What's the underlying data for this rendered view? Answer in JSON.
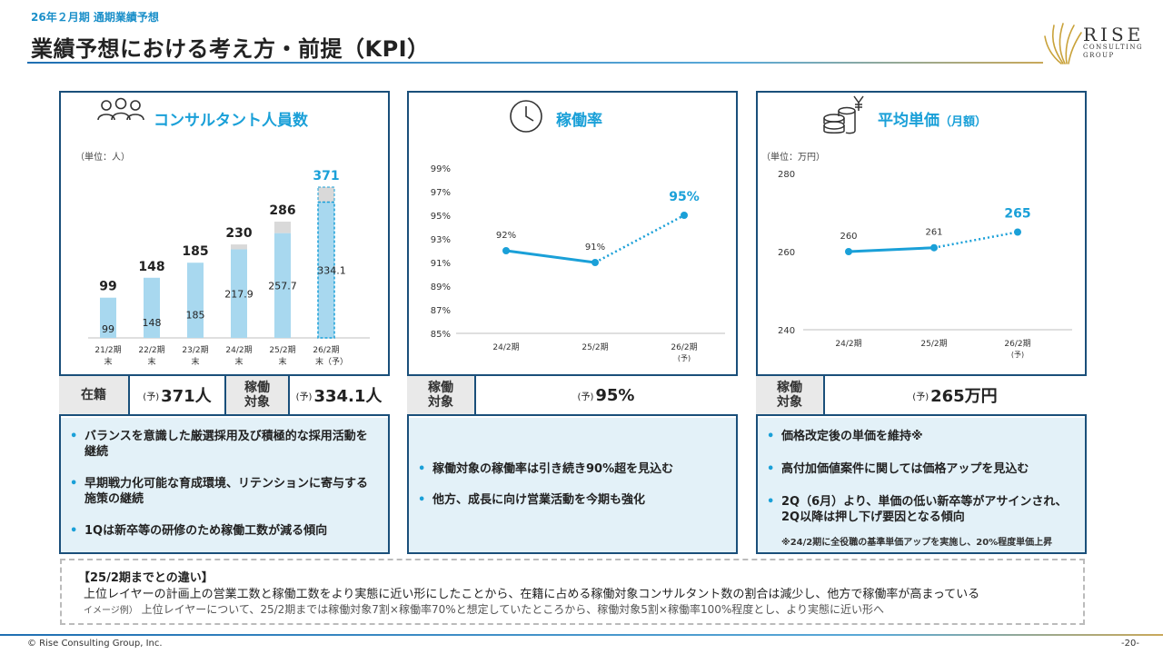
{
  "header": {
    "subtitle": "26年２月期 通期業績予想",
    "title": "業績予想における考え方・前提（KPI）"
  },
  "logo": {
    "name": "RISE",
    "sub1": "CONSULTING",
    "sub2": "GROUP"
  },
  "colors": {
    "accent": "#1aa0d8",
    "navy": "#1a4f7a",
    "bar": "#a8d8ef",
    "bar_gray": "#d9d9d9",
    "bullet_bg": "#e3f1f8"
  },
  "panels": [
    {
      "icon": "people-icon",
      "title": "コンサルタント人員数",
      "unit": "（単位：人）",
      "kpi": {
        "label1": "在籍",
        "yo1": "(予)",
        "value1": "371人",
        "label2a": "稼働",
        "label2b": "対象",
        "yo2": "(予)",
        "value2": "334.1人"
      },
      "bullets": [
        "バランスを意識した厳選採用及び積極的な採用活動を継続",
        "早期戦力化可能な育成環境、リテンションに寄与する施策の継続",
        "1Qは新卒等の研修のため稼働工数が減る傾向"
      ]
    },
    {
      "icon": "clock-icon",
      "title": "稼働率",
      "kpi": {
        "label_a": "稼働",
        "label_b": "対象",
        "yo": "(予)",
        "value": "95%"
      },
      "bullets": [
        "稼働対象の稼働率は引き続き90%超を見込む",
        "他方、成長に向け営業活動を今期も強化"
      ]
    },
    {
      "icon": "coins-yen-icon",
      "title": "平均単価",
      "title_small": "（月額）",
      "unit": "（単位：万円）",
      "kpi": {
        "label_a": "稼働",
        "label_b": "対象",
        "yo": "(予)",
        "value": "265万円"
      },
      "bullets": [
        "価格改定後の単価を維持※",
        "高付加価値案件に関しては価格アップを見込む",
        "2Q（6月）より、単価の低い新卒等がアサインされ、2Q以降は押し下げ要因となる傾向"
      ],
      "note": "※24/2期に全役職の基準単価アップを実施し、20%程度単価上昇"
    }
  ],
  "chart_data": [
    {
      "type": "bar",
      "categories": [
        "21/2期末",
        "22/2期末",
        "23/2期末",
        "24/2期末",
        "25/2期末",
        "26/2期末（予）"
      ],
      "category_lines": [
        [
          "21/2期",
          "末"
        ],
        [
          "22/2期",
          "末"
        ],
        [
          "23/2期",
          "末"
        ],
        [
          "24/2期",
          "末"
        ],
        [
          "25/2期",
          "末"
        ],
        [
          "26/2期",
          "末（予）"
        ]
      ],
      "series": [
        {
          "values": [
            99,
            148,
            185,
            217.9,
            257.7,
            334.1
          ]
        }
      ],
      "totals": [
        99,
        148,
        185,
        230,
        286,
        371
      ],
      "ylim": [
        0,
        380
      ],
      "forecast_index": 5
    },
    {
      "type": "line",
      "categories": [
        "24/2期",
        "25/2期",
        "26/2期（予）"
      ],
      "category_lines": [
        [
          "24/2期"
        ],
        [
          "25/2期"
        ],
        [
          "26/2期",
          "(予)"
        ]
      ],
      "values": [
        92,
        91,
        95
      ],
      "labels": [
        "92%",
        "91%",
        "95%"
      ],
      "yticks": [
        "85%",
        "87%",
        "89%",
        "91%",
        "93%",
        "95%",
        "97%",
        "99%"
      ],
      "ylim": [
        85,
        99
      ],
      "forecast_index": 2
    },
    {
      "type": "line",
      "categories": [
        "24/2期",
        "25/2期",
        "26/2期（予）"
      ],
      "category_lines": [
        [
          "24/2期"
        ],
        [
          "25/2期"
        ],
        [
          "26/2期",
          "(予)"
        ]
      ],
      "values": [
        260,
        261,
        265
      ],
      "labels": [
        "260",
        "261",
        "265"
      ],
      "yticks": [
        "240",
        "260",
        "280"
      ],
      "ylim": [
        240,
        280
      ],
      "forecast_index": 2
    }
  ],
  "diff": {
    "title": "【25/2期までとの違い】",
    "line1": "上位レイヤーの計画上の営業工数と稼働工数をより実態に近い形にしたことから、在籍に占める稼働対象コンサルタント数の割合は減少し、他方で稼働率が高まっている",
    "line2_tag": "イメージ例）",
    "line2": "上位レイヤーについて、25/2期までは稼働対象7割×稼働率70%と想定していたところから、稼働対象5割×稼働率100%程度とし、より実態に近い形へ"
  },
  "footer": {
    "copyright": "© Rise Consulting Group, Inc.",
    "page": "-20-"
  }
}
